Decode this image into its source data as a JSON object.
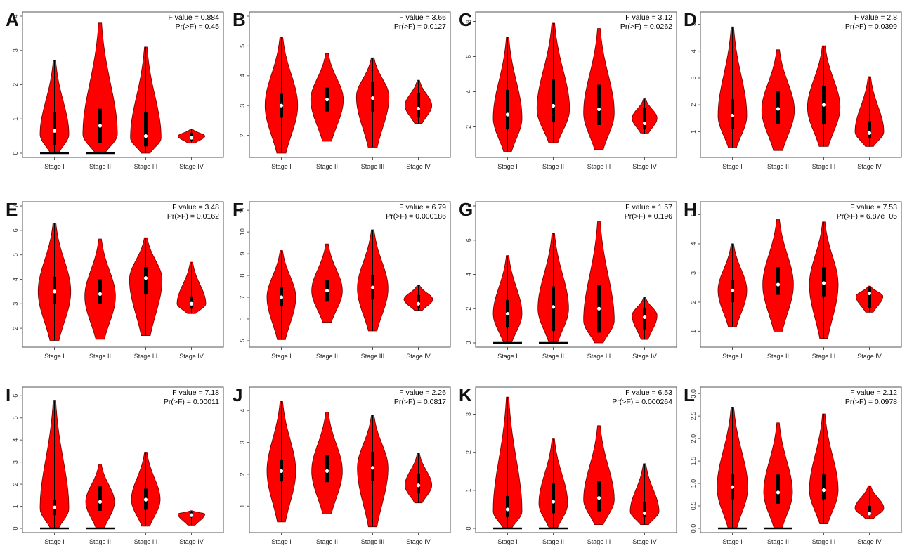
{
  "colors": {
    "violin": "#ff0000",
    "violin_outline": "#6b0000",
    "box": "#000000",
    "median_dot": "#ffffff"
  },
  "chart_data": [
    {
      "panel": "A",
      "type": "violin",
      "categories": [
        "Stage I",
        "Stage II",
        "Stage III",
        "Stage IV"
      ],
      "f_value_text": "F value = 0.884",
      "p_value_text": "Pr(>F) = 0.45",
      "ylim": [
        0,
        4
      ],
      "yticks": [
        0,
        1,
        2,
        3,
        4
      ],
      "groups": [
        {
          "min": 0,
          "q1": 0.25,
          "median": 0.65,
          "q3": 1.2,
          "max": 2.7,
          "mode": 0.55,
          "width": 0.75,
          "zero_line": true
        },
        {
          "min": 0,
          "q1": 0.3,
          "median": 0.8,
          "q3": 1.3,
          "max": 3.8,
          "mode": 0.55,
          "width": 0.9,
          "zero_line": true
        },
        {
          "min": 0,
          "q1": 0.2,
          "median": 0.5,
          "q3": 1.2,
          "max": 3.1,
          "mode": 0.45,
          "width": 0.8
        },
        {
          "min": 0.3,
          "q1": 0.35,
          "median": 0.45,
          "q3": 0.6,
          "max": 0.7,
          "mode": 0.5,
          "width": 0.7
        }
      ]
    },
    {
      "panel": "B",
      "type": "violin",
      "categories": [
        "Stage I",
        "Stage II",
        "Stage III",
        "Stage IV"
      ],
      "f_value_text": "F value = 3.66",
      "p_value_text": "Pr(>F) = 0.0127",
      "ylim": [
        1.4,
        6
      ],
      "yticks": [
        2,
        3,
        4,
        5,
        6
      ],
      "groups": [
        {
          "min": 1.4,
          "q1": 2.6,
          "median": 3.0,
          "q3": 3.4,
          "max": 5.3,
          "mode": 3.0,
          "width": 0.85
        },
        {
          "min": 1.8,
          "q1": 2.8,
          "median": 3.2,
          "q3": 3.6,
          "max": 4.75,
          "mode": 3.2,
          "width": 0.85
        },
        {
          "min": 1.6,
          "q1": 2.8,
          "median": 3.25,
          "q3": 3.8,
          "max": 4.6,
          "mode": 3.3,
          "width": 0.85
        },
        {
          "min": 2.4,
          "q1": 2.6,
          "median": 2.9,
          "q3": 3.4,
          "max": 3.85,
          "mode": 3.0,
          "width": 0.7
        }
      ]
    },
    {
      "panel": "C",
      "type": "violin",
      "categories": [
        "Stage I",
        "Stage II",
        "Stage III",
        "Stage IV"
      ],
      "f_value_text": "F value = 3.12",
      "p_value_text": "Pr(>F) = 0.0262",
      "ylim": [
        0.5,
        8.3
      ],
      "yticks": [
        2,
        4,
        6,
        8
      ],
      "groups": [
        {
          "min": 0.6,
          "q1": 1.9,
          "median": 2.7,
          "q3": 4.1,
          "max": 7.1,
          "mode": 2.5,
          "width": 0.75
        },
        {
          "min": 1.1,
          "q1": 2.3,
          "median": 3.2,
          "q3": 4.7,
          "max": 7.9,
          "mode": 3.0,
          "width": 0.85
        },
        {
          "min": 0.7,
          "q1": 2.1,
          "median": 3.0,
          "q3": 4.4,
          "max": 7.6,
          "mode": 2.8,
          "width": 0.8
        },
        {
          "min": 1.6,
          "q1": 1.9,
          "median": 2.2,
          "q3": 3.1,
          "max": 3.6,
          "mode": 2.5,
          "width": 0.65
        }
      ]
    },
    {
      "panel": "D",
      "type": "violin",
      "categories": [
        "Stage I",
        "Stage II",
        "Stage III",
        "Stage IV"
      ],
      "f_value_text": "F value = 2.8",
      "p_value_text": "Pr(>F) = 0.0399",
      "ylim": [
        0.2,
        5.3
      ],
      "yticks": [
        1,
        2,
        3,
        4,
        5
      ],
      "groups": [
        {
          "min": 0.4,
          "q1": 1.1,
          "median": 1.6,
          "q3": 2.2,
          "max": 4.9,
          "mode": 1.6,
          "width": 0.75
        },
        {
          "min": 0.3,
          "q1": 1.3,
          "median": 1.85,
          "q3": 2.5,
          "max": 4.05,
          "mode": 1.8,
          "width": 0.85
        },
        {
          "min": 0.45,
          "q1": 1.3,
          "median": 2.0,
          "q3": 2.7,
          "max": 4.2,
          "mode": 1.9,
          "width": 0.85
        },
        {
          "min": 0.45,
          "q1": 0.75,
          "median": 0.95,
          "q3": 1.4,
          "max": 3.05,
          "mode": 1.0,
          "width": 0.75
        }
      ]
    },
    {
      "panel": "E",
      "type": "violin",
      "categories": [
        "Stage I",
        "Stage II",
        "Stage III",
        "Stage IV"
      ],
      "f_value_text": "F value = 3.48",
      "p_value_text": "Pr(>F) = 0.0162",
      "ylim": [
        1.4,
        7
      ],
      "yticks": [
        2,
        3,
        4,
        5,
        6,
        7
      ],
      "groups": [
        {
          "min": 1.5,
          "q1": 3.0,
          "median": 3.5,
          "q3": 4.1,
          "max": 6.3,
          "mode": 3.5,
          "width": 0.85
        },
        {
          "min": 1.55,
          "q1": 3.0,
          "median": 3.4,
          "q3": 4.0,
          "max": 5.65,
          "mode": 3.3,
          "width": 0.8
        },
        {
          "min": 1.7,
          "q1": 3.4,
          "median": 4.05,
          "q3": 4.5,
          "max": 5.7,
          "mode": 4.0,
          "width": 0.85
        },
        {
          "min": 2.6,
          "q1": 2.8,
          "median": 3.0,
          "q3": 3.3,
          "max": 4.7,
          "mode": 3.0,
          "width": 0.75
        }
      ]
    },
    {
      "panel": "F",
      "type": "violin",
      "categories": [
        "Stage I",
        "Stage II",
        "Stage III",
        "Stage IV"
      ],
      "f_value_text": "F value = 6.79",
      "p_value_text": "Pr(>F) = 0.000186",
      "ylim": [
        4.9,
        11.2
      ],
      "yticks": [
        5,
        6,
        7,
        8,
        9,
        10,
        11
      ],
      "groups": [
        {
          "min": 5.05,
          "q1": 6.6,
          "median": 7.0,
          "q3": 7.45,
          "max": 9.15,
          "mode": 7.0,
          "width": 0.75
        },
        {
          "min": 5.85,
          "q1": 6.8,
          "median": 7.3,
          "q3": 7.8,
          "max": 9.45,
          "mode": 7.3,
          "width": 0.8
        },
        {
          "min": 5.45,
          "q1": 6.9,
          "median": 7.45,
          "q3": 8.0,
          "max": 10.1,
          "mode": 7.4,
          "width": 0.8
        },
        {
          "min": 6.4,
          "q1": 6.5,
          "median": 6.7,
          "q3": 7.1,
          "max": 7.55,
          "mode": 6.9,
          "width": 0.75
        }
      ]
    },
    {
      "panel": "G",
      "type": "violin",
      "categories": [
        "Stage I",
        "Stage II",
        "Stage III",
        "Stage IV"
      ],
      "f_value_text": "F value = 1.57",
      "p_value_text": "Pr(>F) = 0.196",
      "ylim": [
        0,
        8
      ],
      "yticks": [
        0,
        2,
        4,
        6,
        8
      ],
      "groups": [
        {
          "min": 0,
          "q1": 0.9,
          "median": 1.7,
          "q3": 2.5,
          "max": 5.1,
          "mode": 1.7,
          "width": 0.75,
          "zero_line": true
        },
        {
          "min": 0,
          "q1": 0.7,
          "median": 2.1,
          "q3": 3.3,
          "max": 6.4,
          "mode": 2.0,
          "width": 0.8,
          "zero_line": true
        },
        {
          "min": 0,
          "q1": 0.6,
          "median": 2.0,
          "q3": 3.4,
          "max": 7.1,
          "mode": 1.3,
          "width": 0.8
        },
        {
          "min": 0.2,
          "q1": 0.8,
          "median": 1.5,
          "q3": 2.0,
          "max": 2.65,
          "mode": 1.6,
          "width": 0.65
        }
      ]
    },
    {
      "panel": "H",
      "type": "violin",
      "categories": [
        "Stage I",
        "Stage II",
        "Stage III",
        "Stage IV"
      ],
      "f_value_text": "F value = 7.53",
      "p_value_text": "Pr(>F) = 6.87e−05",
      "ylim": [
        0.6,
        5.3
      ],
      "yticks": [
        1,
        2,
        3,
        4,
        5
      ],
      "groups": [
        {
          "min": 1.15,
          "q1": 2.0,
          "median": 2.4,
          "q3": 2.75,
          "max": 4.0,
          "mode": 2.4,
          "width": 0.75
        },
        {
          "min": 1.0,
          "q1": 2.25,
          "median": 2.6,
          "q3": 3.2,
          "max": 4.85,
          "mode": 2.6,
          "width": 0.8
        },
        {
          "min": 0.75,
          "q1": 2.2,
          "median": 2.65,
          "q3": 3.2,
          "max": 4.75,
          "mode": 2.6,
          "width": 0.75
        },
        {
          "min": 1.65,
          "q1": 1.8,
          "median": 2.3,
          "q3": 2.5,
          "max": 2.55,
          "mode": 2.2,
          "width": 0.7
        }
      ]
    },
    {
      "panel": "I",
      "type": "violin",
      "categories": [
        "Stage I",
        "Stage II",
        "Stage III",
        "Stage IV"
      ],
      "f_value_text": "F value = 7.18",
      "p_value_text": "Pr(>F) = 0.00011",
      "ylim": [
        0,
        6.2
      ],
      "yticks": [
        0,
        1,
        2,
        3,
        4,
        5,
        6
      ],
      "groups": [
        {
          "min": 0,
          "q1": 0.6,
          "median": 0.95,
          "q3": 1.3,
          "max": 5.8,
          "mode": 0.9,
          "width": 0.75,
          "zero_line": true
        },
        {
          "min": 0,
          "q1": 0.8,
          "median": 1.2,
          "q3": 1.9,
          "max": 2.9,
          "mode": 1.2,
          "width": 0.75,
          "zero_line": true
        },
        {
          "min": 0.1,
          "q1": 0.85,
          "median": 1.3,
          "q3": 1.8,
          "max": 3.45,
          "mode": 1.3,
          "width": 0.75
        },
        {
          "min": 0.15,
          "q1": 0.5,
          "median": 0.6,
          "q3": 0.75,
          "max": 0.8,
          "mode": 0.65,
          "width": 0.7
        }
      ]
    },
    {
      "panel": "J",
      "type": "violin",
      "categories": [
        "Stage I",
        "Stage II",
        "Stage III",
        "Stage IV"
      ],
      "f_value_text": "F value = 2.26",
      "p_value_text": "Pr(>F) = 0.0817",
      "ylim": [
        0.3,
        4.6
      ],
      "yticks": [
        1,
        2,
        3,
        4
      ],
      "groups": [
        {
          "min": 0.5,
          "q1": 1.8,
          "median": 2.1,
          "q3": 2.45,
          "max": 4.3,
          "mode": 2.1,
          "width": 0.75
        },
        {
          "min": 0.75,
          "q1": 1.75,
          "median": 2.1,
          "q3": 2.6,
          "max": 3.95,
          "mode": 2.1,
          "width": 0.8
        },
        {
          "min": 0.35,
          "q1": 1.8,
          "median": 2.2,
          "q3": 2.7,
          "max": 3.85,
          "mode": 2.2,
          "width": 0.8
        },
        {
          "min": 1.1,
          "q1": 1.4,
          "median": 1.65,
          "q3": 2.0,
          "max": 2.65,
          "mode": 1.65,
          "width": 0.7
        }
      ]
    },
    {
      "panel": "K",
      "type": "violin",
      "categories": [
        "Stage I",
        "Stage II",
        "Stage III",
        "Stage IV"
      ],
      "f_value_text": "F value = 6.53",
      "p_value_text": "Pr(>F) = 0.000264",
      "ylim": [
        0,
        3.6
      ],
      "yticks": [
        0,
        1,
        2,
        3
      ],
      "groups": [
        {
          "min": 0,
          "q1": 0.3,
          "median": 0.5,
          "q3": 0.85,
          "max": 3.45,
          "mode": 0.45,
          "width": 0.75,
          "zero_line": true
        },
        {
          "min": 0,
          "q1": 0.4,
          "median": 0.7,
          "q3": 1.2,
          "max": 2.35,
          "mode": 0.65,
          "width": 0.75,
          "zero_line": true
        },
        {
          "min": 0.1,
          "q1": 0.45,
          "median": 0.8,
          "q3": 1.25,
          "max": 2.7,
          "mode": 0.75,
          "width": 0.8
        },
        {
          "min": 0.1,
          "q1": 0.3,
          "median": 0.4,
          "q3": 0.7,
          "max": 1.7,
          "mode": 0.45,
          "width": 0.75
        }
      ]
    },
    {
      "panel": "L",
      "type": "violin",
      "categories": [
        "Stage I",
        "Stage II",
        "Stage III",
        "Stage IV"
      ],
      "f_value_text": "F value = 2.12",
      "p_value_text": "Pr(>F) = 0.0978",
      "ylim": [
        0,
        3.05
      ],
      "yticks": [
        0.0,
        0.5,
        1.0,
        1.5,
        2.0,
        2.5,
        3.0
      ],
      "ytick_labels": [
        "0.0",
        "0.5",
        "1.0",
        "1.5",
        "2.0",
        "2.5",
        "3.0"
      ],
      "groups": [
        {
          "min": 0,
          "q1": 0.65,
          "median": 0.92,
          "q3": 1.2,
          "max": 2.7,
          "mode": 0.9,
          "width": 0.8,
          "zero_line": true
        },
        {
          "min": 0,
          "q1": 0.55,
          "median": 0.8,
          "q3": 1.2,
          "max": 2.35,
          "mode": 0.8,
          "width": 0.75,
          "zero_line": true
        },
        {
          "min": 0.1,
          "q1": 0.65,
          "median": 0.85,
          "q3": 1.2,
          "max": 2.55,
          "mode": 0.85,
          "width": 0.75
        },
        {
          "min": 0.22,
          "q1": 0.3,
          "median": 0.33,
          "q3": 0.5,
          "max": 0.95,
          "mode": 0.45,
          "width": 0.75
        }
      ]
    }
  ]
}
